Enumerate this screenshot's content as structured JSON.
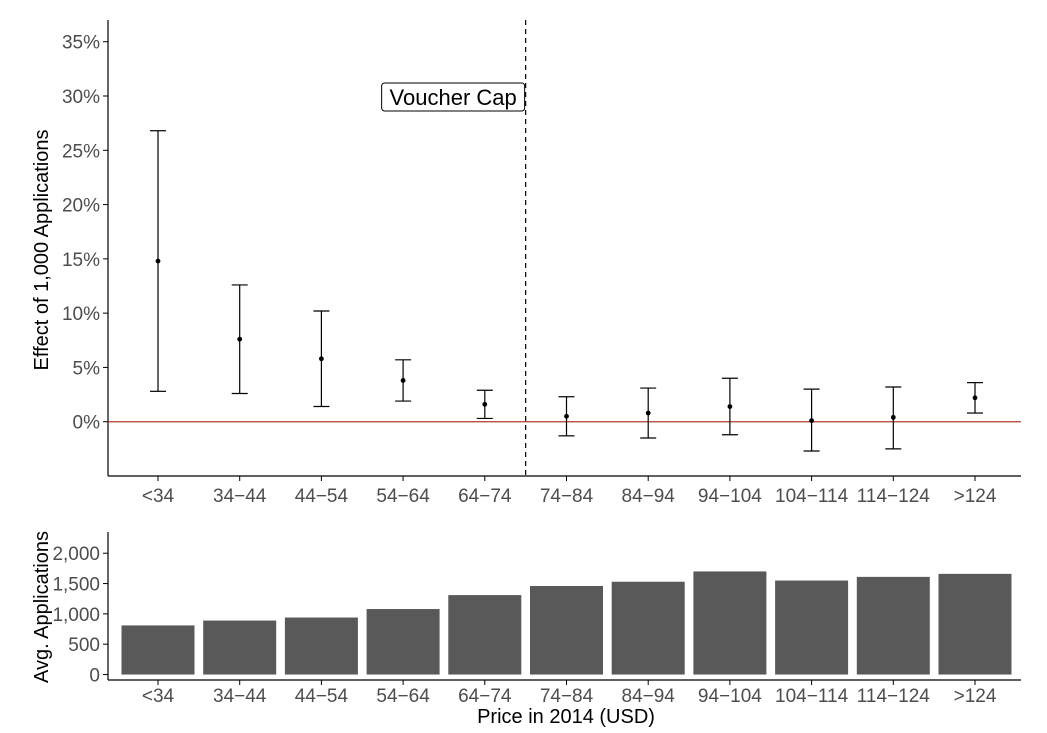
{
  "colors": {
    "bar": "#595959",
    "reference_line": "#b03a2e",
    "errorbar": "#000000",
    "axis": "#000000"
  },
  "chart_data": [
    {
      "type": "scatter",
      "subtype": "point-errorbar",
      "ylabel": "Effect of 1,000 Applications",
      "xlabel": "",
      "categories": [
        "<34",
        "34−44",
        "44−54",
        "54−64",
        "64−74",
        "74−84",
        "84−94",
        "94−104",
        "104−114",
        "114−124",
        ">124"
      ],
      "points": [
        {
          "estimate": 14.8,
          "lower": 2.8,
          "upper": 26.8
        },
        {
          "estimate": 7.6,
          "lower": 2.6,
          "upper": 12.6
        },
        {
          "estimate": 5.8,
          "lower": 1.4,
          "upper": 10.2
        },
        {
          "estimate": 3.8,
          "lower": 1.9,
          "upper": 5.7
        },
        {
          "estimate": 1.6,
          "lower": 0.3,
          "upper": 2.9
        },
        {
          "estimate": 0.5,
          "lower": -1.3,
          "upper": 2.3
        },
        {
          "estimate": 0.8,
          "lower": -1.5,
          "upper": 3.1
        },
        {
          "estimate": 1.4,
          "lower": -1.2,
          "upper": 4.0
        },
        {
          "estimate": 0.1,
          "lower": -2.7,
          "upper": 3.0
        },
        {
          "estimate": 0.4,
          "lower": -2.5,
          "upper": 3.2
        },
        {
          "estimate": 2.2,
          "lower": 0.8,
          "upper": 3.6
        }
      ],
      "ylim": [
        -5,
        37
      ],
      "yticks": [
        0,
        5,
        10,
        15,
        20,
        25,
        30,
        35
      ],
      "ytick_labels": [
        "0%",
        "5%",
        "10%",
        "15%",
        "20%",
        "25%",
        "30%",
        "35%"
      ],
      "reference_line": {
        "y": 0
      },
      "vline": {
        "between_index": [
          4,
          5
        ],
        "style": "dashed"
      },
      "annotation": "Voucher Cap",
      "grid": false
    },
    {
      "type": "bar",
      "ylabel": "Avg. Applications",
      "xlabel": "Price in 2014 (USD)",
      "categories": [
        "<34",
        "34−44",
        "44−54",
        "54−64",
        "64−74",
        "74−84",
        "84−94",
        "94−104",
        "104−114",
        "114−124",
        ">124"
      ],
      "values": [
        810,
        890,
        940,
        1080,
        1310,
        1460,
        1530,
        1700,
        1550,
        1610,
        1660
      ],
      "ylim": [
        -90,
        2350
      ],
      "yticks": [
        0,
        500,
        1000,
        1500,
        2000
      ],
      "ytick_labels": [
        "0",
        "500",
        "1,000",
        "1,500",
        "2,000"
      ],
      "grid": false
    }
  ]
}
